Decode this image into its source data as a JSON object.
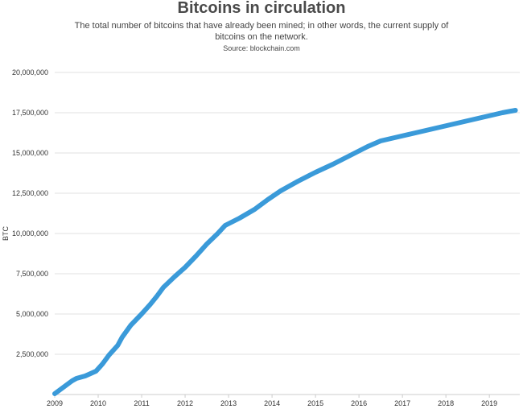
{
  "chart_data": {
    "type": "line",
    "title": "Bitcoins in circulation",
    "subtitle": "The total number of bitcoins that have already been mined; in other words, the current supply of bitcoins on the network.",
    "source": "Source: blockchain.com",
    "xlabel": "",
    "ylabel": "BTC",
    "xlim": [
      2009.0,
      2019.7
    ],
    "ylim": [
      0,
      20000000
    ],
    "x_ticks": [
      "2009",
      "2010",
      "2011",
      "2012",
      "2013",
      "2014",
      "2015",
      "2016",
      "2017",
      "2018",
      "2019"
    ],
    "y_ticks": [
      "2,500,000",
      "5,000,000",
      "7,500,000",
      "10,000,000",
      "12,500,000",
      "15,000,000",
      "17,500,000",
      "20,000,000"
    ],
    "y_tick_values": [
      2500000,
      5000000,
      7500000,
      10000000,
      12500000,
      15000000,
      17500000,
      20000000
    ],
    "grid": true,
    "series": [
      {
        "color": "#3a9ad9",
        "x": [
          2009.0,
          2009.2,
          2009.4,
          2009.5,
          2009.7,
          2009.95,
          2010.1,
          2010.25,
          2010.45,
          2010.55,
          2010.75,
          2011.0,
          2011.2,
          2011.35,
          2011.5,
          2011.75,
          2012.0,
          2012.25,
          2012.5,
          2012.75,
          2012.92,
          2013.25,
          2013.6,
          2013.9,
          2014.2,
          2014.6,
          2015.0,
          2015.4,
          2015.8,
          2016.2,
          2016.5,
          2016.9,
          2017.3,
          2017.7,
          2018.1,
          2018.5,
          2018.9,
          2019.3,
          2019.6
        ],
        "y": [
          50000,
          450000,
          850000,
          1000000,
          1150000,
          1450000,
          1900000,
          2450000,
          3050000,
          3550000,
          4300000,
          5000000,
          5600000,
          6100000,
          6650000,
          7300000,
          7900000,
          8600000,
          9350000,
          10000000,
          10500000,
          10950000,
          11500000,
          12100000,
          12650000,
          13250000,
          13800000,
          14300000,
          14850000,
          15400000,
          15750000,
          16000000,
          16250000,
          16500000,
          16750000,
          17000000,
          17250000,
          17500000,
          17650000
        ]
      }
    ]
  }
}
